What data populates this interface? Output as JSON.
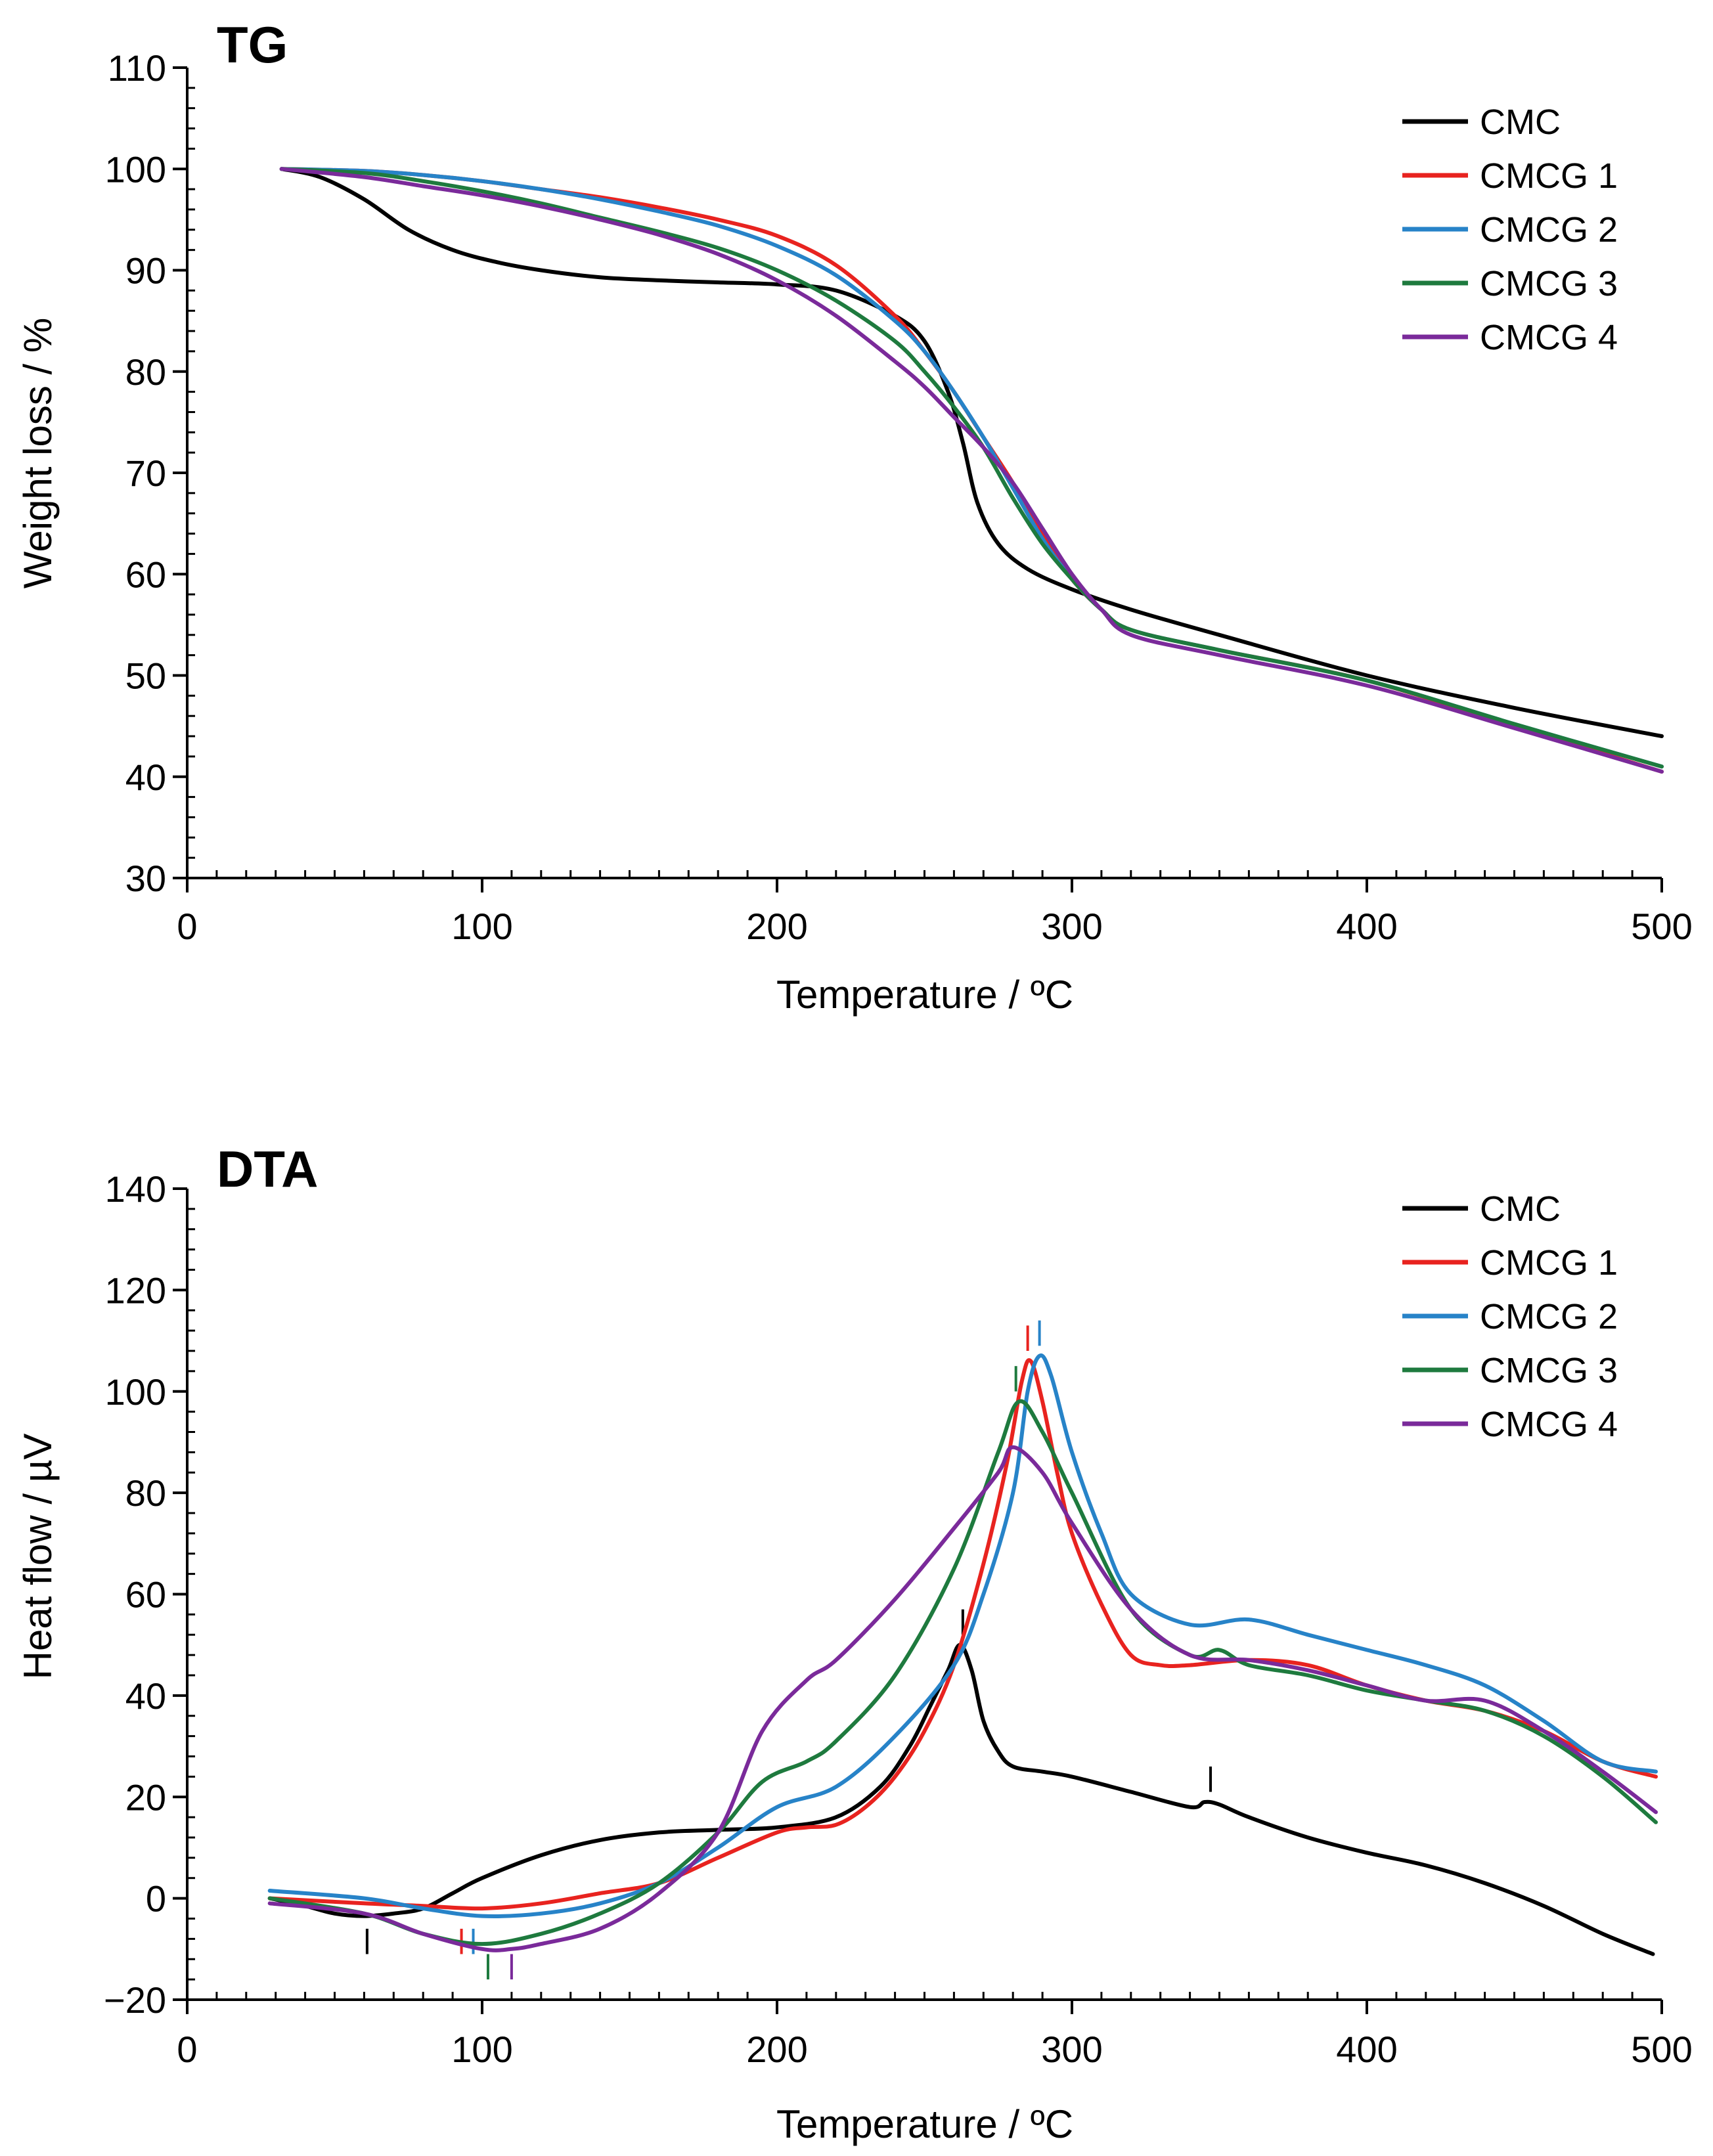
{
  "chart_data": [
    {
      "id": "tg",
      "type": "line",
      "title": "TG",
      "xlabel": "Temperature / ºC",
      "ylabel": "Weight loss / %",
      "xlim": [
        0,
        500
      ],
      "ylim": [
        30,
        110
      ],
      "xticks": [
        0,
        100,
        200,
        300,
        400,
        500
      ],
      "yticks": [
        30,
        40,
        50,
        60,
        70,
        80,
        90,
        100,
        110
      ],
      "legend_position": "top-right",
      "series": [
        {
          "name": "CMC",
          "color": "#000000",
          "x": [
            32,
            45,
            60,
            75,
            90,
            105,
            120,
            140,
            160,
            180,
            200,
            220,
            240,
            250,
            258,
            263,
            268,
            275,
            285,
            300,
            320,
            350,
            400,
            450,
            500
          ],
          "y": [
            100,
            99.2,
            97,
            94,
            92,
            90.8,
            90,
            89.3,
            89,
            88.8,
            88.6,
            88,
            85.5,
            83,
            78,
            73,
            67,
            63,
            60.5,
            58.5,
            56.5,
            54,
            50,
            46.8,
            44
          ]
        },
        {
          "name": "CMCG 1",
          "color": "#e8231f",
          "x": [
            32,
            60,
            80,
            100,
            120,
            140,
            160,
            180,
            200,
            220,
            240,
            250,
            260,
            270,
            280,
            290,
            300,
            310,
            320,
            350,
            400,
            450,
            500
          ],
          "y": [
            100,
            99.8,
            99.4,
            98.8,
            98,
            97.2,
            96.2,
            95,
            93.4,
            90.5,
            85.5,
            82,
            78,
            73.5,
            69,
            64,
            59.5,
            56.5,
            54.5,
            52.5,
            49.5,
            45,
            40.5
          ]
        },
        {
          "name": "CMCG 2",
          "color": "#2783c8",
          "x": [
            32,
            60,
            80,
            100,
            120,
            140,
            160,
            180,
            200,
            220,
            240,
            250,
            260,
            270,
            280,
            290,
            300,
            310,
            320,
            350,
            400,
            450,
            500
          ],
          "y": [
            100,
            99.8,
            99.4,
            98.8,
            98,
            97,
            95.8,
            94.4,
            92.4,
            89.5,
            85,
            82,
            78,
            73.5,
            68.5,
            63.5,
            59.5,
            56.5,
            54.5,
            52.5,
            49.5,
            45.2,
            41
          ]
        },
        {
          "name": "CMCG 3",
          "color": "#1e7a3e",
          "x": [
            32,
            60,
            80,
            100,
            120,
            140,
            160,
            180,
            200,
            220,
            240,
            250,
            260,
            270,
            280,
            290,
            300,
            310,
            320,
            350,
            400,
            450,
            500
          ],
          "y": [
            100,
            99.6,
            98.8,
            97.8,
            96.6,
            95.2,
            93.8,
            92.2,
            90,
            87,
            83,
            80,
            76.5,
            72.5,
            67.5,
            63,
            59.5,
            56.5,
            54.5,
            52.5,
            49.5,
            45.2,
            41
          ]
        },
        {
          "name": "CMCG 4",
          "color": "#7a2a9a",
          "x": [
            32,
            60,
            80,
            100,
            120,
            140,
            160,
            180,
            200,
            220,
            240,
            250,
            260,
            270,
            280,
            290,
            300,
            310,
            320,
            350,
            400,
            450,
            500
          ],
          "y": [
            100,
            99.2,
            98.3,
            97.4,
            96.3,
            95,
            93.5,
            91.6,
            89,
            85.5,
            81,
            78.5,
            75.5,
            72.5,
            69,
            64.5,
            60,
            56.5,
            54,
            52,
            49,
            44.8,
            40.5
          ]
        }
      ]
    },
    {
      "id": "dta",
      "type": "line",
      "title": "DTA",
      "xlabel": "Temperature / ºC",
      "ylabel": "Heat flow / µV",
      "xlim": [
        0,
        500
      ],
      "ylim": [
        -20,
        140
      ],
      "xticks": [
        0,
        100,
        200,
        300,
        400,
        500
      ],
      "yticks": [
        -20,
        0,
        20,
        40,
        60,
        80,
        100,
        120,
        140
      ],
      "legend_position": "top-right",
      "series": [
        {
          "name": "CMC",
          "color": "#000000",
          "x": [
            28,
            40,
            50,
            60,
            70,
            80,
            90,
            100,
            120,
            140,
            160,
            180,
            200,
            220,
            235,
            245,
            252,
            258,
            262,
            266,
            270,
            275,
            280,
            290,
            300,
            320,
            340,
            345,
            350,
            360,
            380,
            400,
            420,
            440,
            460,
            480,
            497
          ],
          "y": [
            0,
            -1.5,
            -3,
            -3.5,
            -3,
            -2,
            1,
            4,
            8.5,
            11.5,
            13,
            13.5,
            14,
            16,
            22,
            30,
            38,
            45,
            50,
            45,
            35,
            29,
            26,
            25,
            24,
            21,
            18,
            19,
            18.5,
            16,
            12,
            9,
            6.5,
            3,
            -1.5,
            -7,
            -11
          ]
        },
        {
          "name": "CMCG 1",
          "color": "#e8231f",
          "x": [
            28,
            60,
            80,
            100,
            120,
            140,
            160,
            180,
            200,
            210,
            220,
            230,
            240,
            250,
            260,
            270,
            278,
            283,
            286,
            290,
            295,
            300,
            310,
            320,
            330,
            340,
            360,
            380,
            400,
            420,
            440,
            460,
            480,
            498
          ],
          "y": [
            0,
            -1,
            -1.5,
            -2,
            -1,
            1,
            3,
            8,
            13,
            14,
            14.5,
            18,
            24,
            33,
            46,
            66,
            86,
            102,
            106,
            98,
            84,
            72,
            58,
            48,
            46,
            46,
            47,
            46,
            42,
            39,
            37,
            33,
            27,
            24
          ]
        },
        {
          "name": "CMCG 2",
          "color": "#2783c8",
          "x": [
            28,
            60,
            80,
            100,
            120,
            140,
            160,
            180,
            200,
            220,
            240,
            260,
            270,
            280,
            285,
            289,
            293,
            300,
            310,
            320,
            340,
            360,
            380,
            400,
            420,
            440,
            460,
            480,
            498
          ],
          "y": [
            1.5,
            0,
            -2,
            -3.5,
            -3,
            -1,
            3,
            10,
            18,
            22,
            32,
            46,
            60,
            80,
            100,
            107,
            103,
            88,
            72,
            60,
            54,
            55,
            52,
            49,
            46,
            42,
            35,
            27,
            25
          ]
        },
        {
          "name": "CMCG 3",
          "color": "#1e7a3e",
          "x": [
            28,
            60,
            80,
            100,
            120,
            140,
            160,
            180,
            195,
            210,
            220,
            240,
            260,
            275,
            282,
            290,
            300,
            320,
            340,
            350,
            360,
            380,
            400,
            420,
            440,
            460,
            480,
            498
          ],
          "y": [
            0,
            -3,
            -7,
            -9,
            -7,
            -3,
            3,
            13,
            23,
            27,
            31,
            44,
            65,
            88,
            98,
            92,
            80,
            57,
            48,
            49,
            46,
            44,
            41,
            39,
            37,
            32,
            24,
            15
          ]
        },
        {
          "name": "CMCG 4",
          "color": "#7a2a9a",
          "x": [
            28,
            60,
            80,
            100,
            110,
            120,
            140,
            160,
            180,
            195,
            210,
            220,
            240,
            260,
            275,
            280,
            290,
            300,
            320,
            340,
            360,
            380,
            400,
            420,
            440,
            460,
            480,
            498
          ],
          "y": [
            -1,
            -3,
            -7,
            -10,
            -10,
            -9,
            -6,
            1,
            13,
            33,
            43,
            47,
            59,
            73,
            84,
            89,
            84,
            74,
            57,
            48,
            47,
            45,
            42,
            39,
            39,
            33,
            25,
            17
          ]
        }
      ],
      "markers": [
        {
          "series": "CMC",
          "x": 61,
          "y_from": -11,
          "y_to": -6
        },
        {
          "series": "CMC",
          "x": 263,
          "y_from": 52,
          "y_to": 57
        },
        {
          "series": "CMC",
          "x": 347,
          "y_from": 21,
          "y_to": 26
        },
        {
          "series": "CMCG 1",
          "x": 93,
          "y_from": -11,
          "y_to": -6
        },
        {
          "series": "CMCG 1",
          "x": 285,
          "y_from": 108,
          "y_to": 113
        },
        {
          "series": "CMCG 2",
          "x": 97,
          "y_from": -11,
          "y_to": -6
        },
        {
          "series": "CMCG 2",
          "x": 289,
          "y_from": 109,
          "y_to": 114
        },
        {
          "series": "CMCG 3",
          "x": 102,
          "y_from": -16,
          "y_to": -11
        },
        {
          "series": "CMCG 3",
          "x": 281,
          "y_from": 100,
          "y_to": 105
        },
        {
          "series": "CMCG 4",
          "x": 110,
          "y_from": -16,
          "y_to": -11
        }
      ]
    }
  ]
}
